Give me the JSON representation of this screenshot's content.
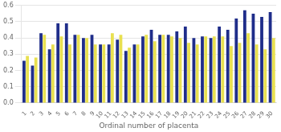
{
  "chart_data": {
    "type": "bar",
    "xlabel": "Ordinal number of placenta",
    "categories": [
      "1",
      "2",
      "3",
      "4",
      "5",
      "6",
      "7",
      "8",
      "9",
      "10",
      "11",
      "12",
      "13",
      "14",
      "15",
      "16",
      "17",
      "18",
      "19",
      "20",
      "21",
      "22",
      "23",
      "24",
      "25",
      "26",
      "27",
      "28",
      "29",
      "30"
    ],
    "series": [
      {
        "color": "#1f2d8a",
        "values": [
          0.26,
          0.23,
          0.43,
          0.33,
          0.49,
          0.49,
          0.42,
          0.4,
          0.42,
          0.36,
          0.36,
          0.39,
          0.32,
          0.36,
          0.41,
          0.45,
          0.42,
          0.42,
          0.44,
          0.47,
          0.4,
          0.41,
          0.4,
          0.47,
          0.45,
          0.52,
          0.57,
          0.55,
          0.53,
          0.56
        ]
      },
      {
        "color": "#e8e050",
        "values": [
          0.29,
          0.28,
          0.42,
          0.36,
          0.41,
          0.36,
          0.42,
          0.4,
          0.36,
          0.36,
          0.43,
          0.42,
          0.34,
          0.36,
          0.42,
          0.38,
          0.42,
          0.41,
          0.4,
          0.37,
          0.36,
          0.41,
          0.41,
          0.41,
          0.35,
          0.37,
          0.43,
          0.36,
          0.33,
          0.4
        ]
      }
    ],
    "ylim": [
      0,
      0.6
    ],
    "yticks": [
      {
        "value": 0,
        "label": "0.0"
      },
      0.1,
      0.2,
      0.3,
      0.4,
      0.5,
      0.6
    ],
    "grid": "y"
  }
}
